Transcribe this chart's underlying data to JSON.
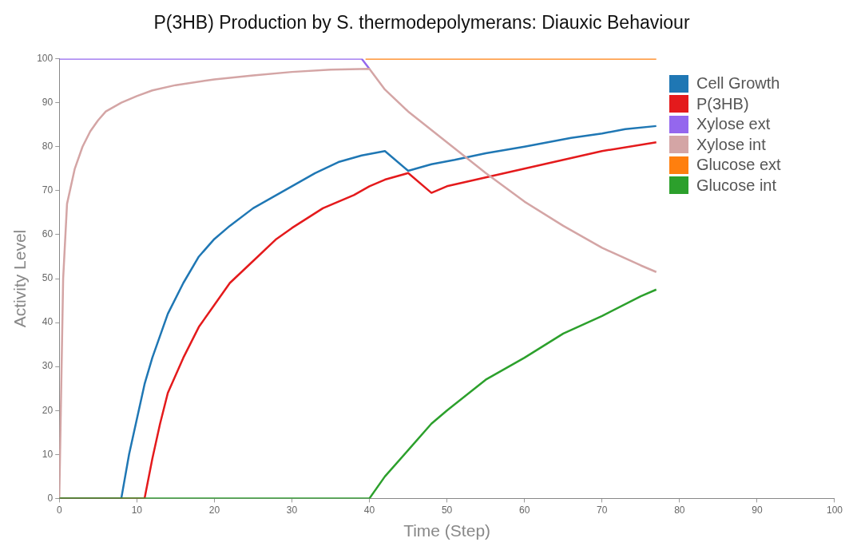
{
  "chart_data": {
    "type": "line",
    "title": "P(3HB) Production by S. thermodepolymerans: Diauxic Behaviour",
    "xlabel": "Time (Step)",
    "ylabel": "Activity Level",
    "xlim": [
      0,
      100
    ],
    "xticks": [
      0,
      10,
      20,
      30,
      40,
      50,
      60,
      70,
      80,
      90,
      100
    ],
    "ylim": [
      0,
      100
    ],
    "yticks": [
      0,
      10,
      20,
      30,
      40,
      50,
      60,
      70,
      80,
      90,
      100
    ],
    "grid": false,
    "legend": "top right",
    "marker": "none",
    "line_style": "solid",
    "series": [
      {
        "name": "Cell Growth",
        "color": "#1f77b4",
        "x": [
          0,
          8,
          9,
          10,
          11,
          12,
          14,
          16,
          18,
          20,
          22,
          25,
          28,
          30,
          33,
          36,
          39,
          42,
          45,
          48,
          51,
          55,
          60,
          66,
          70,
          73,
          77
        ],
        "values": [
          0,
          0,
          10,
          18,
          26,
          32,
          42,
          49,
          55,
          59,
          62,
          66,
          69,
          71,
          74,
          76.5,
          78,
          79,
          74.5,
          76,
          77,
          78.5,
          80,
          82,
          83,
          84,
          84.7
        ]
      },
      {
        "name": "P(3HB)",
        "color": "#e41a1c",
        "x": [
          0,
          11,
          12,
          13,
          14,
          16,
          18,
          20,
          22,
          25,
          28,
          30,
          34,
          38,
          40,
          42,
          45,
          48,
          50,
          55,
          60,
          65,
          70,
          77
        ],
        "values": [
          0,
          0,
          9,
          17,
          24,
          32,
          39,
          44,
          49,
          54,
          59,
          61.5,
          66,
          69,
          71,
          72.5,
          74,
          69.5,
          71,
          73,
          75,
          77,
          79,
          81
        ]
      },
      {
        "name": "Xylose ext",
        "color": "#9467ee",
        "x": [
          0,
          39,
          40
        ],
        "values": [
          100,
          100,
          97.7
        ]
      },
      {
        "name": "Xylose int",
        "color": "#d4a5a5",
        "x": [
          0,
          0.5,
          1,
          2,
          3,
          4,
          5,
          6,
          8,
          10,
          12,
          15,
          20,
          25,
          30,
          35,
          40,
          42,
          45,
          50,
          55,
          60,
          65,
          70,
          75,
          77
        ],
        "values": [
          0,
          50,
          67,
          75,
          80,
          83.5,
          86,
          88,
          90,
          91.5,
          92.8,
          94,
          95.3,
          96.2,
          97,
          97.5,
          97.7,
          93,
          88,
          81,
          74,
          67.5,
          62,
          57,
          53,
          51.5
        ]
      },
      {
        "name": "Glucose ext",
        "color": "#ff7f0e",
        "x": [
          39.5,
          77
        ],
        "values": [
          100,
          100
        ]
      },
      {
        "name": "Glucose int",
        "color": "#2ca02c",
        "x": [
          0,
          40,
          42,
          45,
          48,
          50,
          55,
          60,
          65,
          70,
          75,
          77
        ],
        "values": [
          0,
          0,
          5,
          11,
          17,
          20,
          27,
          32,
          37.5,
          41.5,
          46,
          47.5
        ]
      }
    ]
  }
}
